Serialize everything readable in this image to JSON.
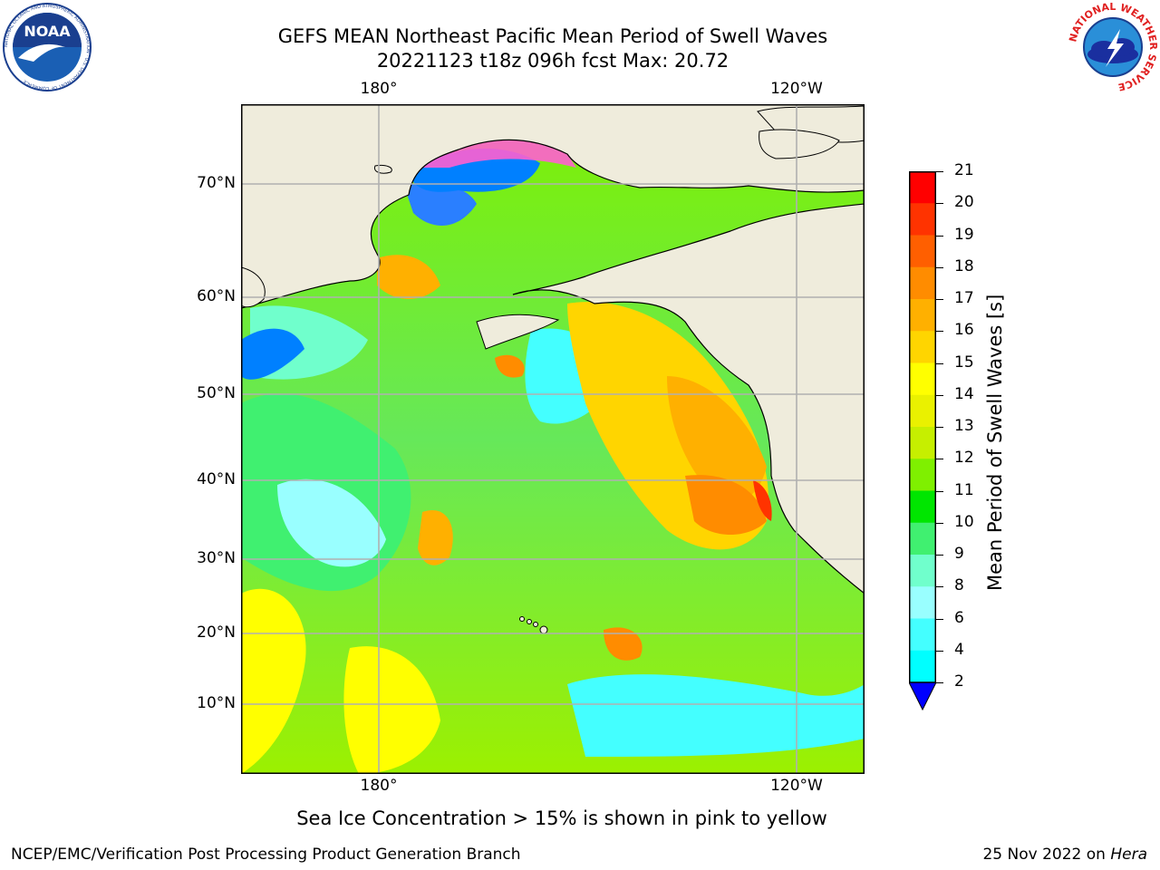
{
  "header": {
    "title_line1": "GEFS MEAN Northeast Pacific Mean Period of Swell Waves",
    "title_line2": "20221123 t18z 096h fcst   Max: 20.72"
  },
  "logos": {
    "noaa_text": "NOAA",
    "noaa_ring_text": "NATIONAL OCEANIC AND ATMOSPHERIC ADMINISTRATION · U.S. DEPARTMENT OF COMMERCE",
    "nws_ring_text": "NATIONAL WEATHER SERVICE"
  },
  "map": {
    "lon_labels_top": [
      "180°",
      "120°W"
    ],
    "lon_labels_bottom": [
      "180°",
      "120°W"
    ],
    "lat_labels": [
      "70°N",
      "60°N",
      "50°N",
      "40°N",
      "30°N",
      "20°N",
      "10°N"
    ],
    "land_color": "#efecdc",
    "grid_color": "#b0b0b0"
  },
  "colorbar": {
    "title": "Mean Period of Swell Waves [s]",
    "ticks": [
      "21",
      "20",
      "19",
      "18",
      "17",
      "16",
      "15",
      "14",
      "13",
      "12",
      "11",
      "10",
      "9",
      "8",
      "6",
      "4",
      "2"
    ],
    "colors_top_to_bottom": [
      "#ff0000",
      "#ff3300",
      "#ff5f00",
      "#ff8c00",
      "#ffb000",
      "#ffd500",
      "#ffff00",
      "#eaf100",
      "#c6ef00",
      "#7ff000",
      "#00e600",
      "#40f070",
      "#70ffcc",
      "#99ffff",
      "#44ffff",
      "#00ffff",
      "#0080ff"
    ],
    "extend_color": "#0000ff"
  },
  "note": "Sea Ice Concentration > 15% is shown in pink to yellow",
  "footer": {
    "left": "NCEP/EMC/Verification Post Processing Product Generation Branch",
    "right_date": "25 Nov 2022 on ",
    "right_host": "Hera"
  }
}
